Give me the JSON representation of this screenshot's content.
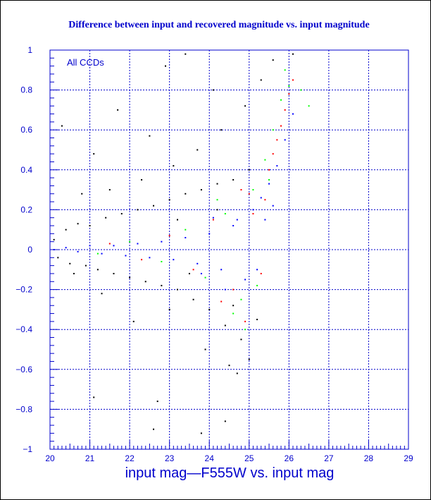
{
  "chart_data": {
    "type": "scatter",
    "title": "Difference between input and recovered magnitude vs. input magnitude",
    "xlabel": "input mag—F555W vs. input mag",
    "ylabel": "",
    "annotation": "All CCDs",
    "xlim": [
      20,
      29
    ],
    "ylim": [
      -1,
      1
    ],
    "x_ticks": [
      "20",
      "21",
      "22",
      "23",
      "24",
      "25",
      "26",
      "27",
      "28",
      "29"
    ],
    "y_ticks": [
      "−1",
      "−0.8",
      "−0.6",
      "−0.4",
      "−0.2",
      "0",
      "0.2",
      "0.4",
      "0.6",
      "0.8",
      "1"
    ],
    "grid": true,
    "axis_color": "#0000cc",
    "grid_color": "#0000cc",
    "series": [
      {
        "color": "#000000",
        "points": [
          [
            20.1,
            0.05
          ],
          [
            20.2,
            -0.04
          ],
          [
            20.4,
            0.1
          ],
          [
            20.5,
            -0.07
          ],
          [
            20.7,
            0.13
          ],
          [
            20.9,
            -0.08
          ],
          [
            21.0,
            0.12
          ],
          [
            21.2,
            -0.1
          ],
          [
            21.4,
            0.16
          ],
          [
            21.6,
            -0.12
          ],
          [
            21.8,
            0.18
          ],
          [
            22.0,
            -0.14
          ],
          [
            22.2,
            0.2
          ],
          [
            22.4,
            -0.16
          ],
          [
            22.6,
            0.22
          ],
          [
            22.8,
            -0.18
          ],
          [
            23.0,
            0.25
          ],
          [
            23.2,
            -0.2
          ],
          [
            23.4,
            0.28
          ],
          [
            23.6,
            -0.25
          ],
          [
            23.8,
            0.3
          ],
          [
            24.0,
            -0.3
          ],
          [
            24.2,
            0.33
          ],
          [
            24.4,
            -0.38
          ],
          [
            24.6,
            0.35
          ],
          [
            24.8,
            -0.45
          ],
          [
            20.8,
            0.28
          ],
          [
            21.5,
            0.3
          ],
          [
            22.3,
            0.35
          ],
          [
            23.1,
            0.42
          ],
          [
            23.7,
            0.5
          ],
          [
            24.3,
            0.6
          ],
          [
            24.9,
            0.72
          ],
          [
            22.9,
            0.92
          ],
          [
            23.4,
            0.98
          ],
          [
            24.1,
            0.8
          ],
          [
            21.7,
            0.7
          ],
          [
            20.3,
            0.62
          ],
          [
            21.1,
            0.48
          ],
          [
            22.5,
            0.57
          ],
          [
            23.0,
            -0.3
          ],
          [
            23.9,
            -0.5
          ],
          [
            24.5,
            -0.58
          ],
          [
            24.7,
            -0.62
          ],
          [
            25.0,
            -0.55
          ],
          [
            22.1,
            -0.36
          ],
          [
            21.3,
            -0.22
          ],
          [
            20.6,
            -0.12
          ],
          [
            24.4,
            -0.86
          ],
          [
            23.8,
            -0.92
          ],
          [
            22.6,
            -0.9
          ],
          [
            25.3,
            0.85
          ],
          [
            25.6,
            0.95
          ],
          [
            26.1,
            0.98
          ],
          [
            22.7,
            -0.76
          ],
          [
            21.1,
            -0.74
          ],
          [
            23.2,
            0.15
          ],
          [
            23.5,
            -0.12
          ],
          [
            24.2,
            0.2
          ],
          [
            24.6,
            -0.28
          ],
          [
            25.0,
            0.4
          ],
          [
            25.2,
            -0.35
          ]
        ]
      },
      {
        "color": "#ff0000",
        "points": [
          [
            21.5,
            0.03
          ],
          [
            22.3,
            -0.05
          ],
          [
            23.0,
            0.07
          ],
          [
            23.6,
            -0.1
          ],
          [
            24.1,
            0.15
          ],
          [
            24.6,
            -0.2
          ],
          [
            25.0,
            0.28
          ],
          [
            25.3,
            -0.12
          ],
          [
            25.5,
            0.4
          ],
          [
            25.7,
            0.55
          ],
          [
            25.9,
            0.7
          ],
          [
            26.0,
            0.78
          ],
          [
            26.1,
            0.85
          ],
          [
            25.4,
            0.25
          ],
          [
            24.8,
            0.3
          ],
          [
            24.3,
            -0.26
          ],
          [
            25.8,
            0.62
          ],
          [
            25.6,
            0.48
          ],
          [
            24.9,
            -0.36
          ],
          [
            25.1,
            0.18
          ]
        ]
      },
      {
        "color": "#00ff00",
        "points": [
          [
            21.2,
            -0.02
          ],
          [
            22.0,
            0.04
          ],
          [
            22.8,
            -0.06
          ],
          [
            23.4,
            0.1
          ],
          [
            23.9,
            -0.14
          ],
          [
            24.4,
            0.18
          ],
          [
            24.8,
            -0.25
          ],
          [
            25.1,
            0.3
          ],
          [
            25.4,
            0.45
          ],
          [
            25.6,
            0.6
          ],
          [
            25.8,
            0.75
          ],
          [
            26.0,
            0.82
          ],
          [
            24.9,
            -0.4
          ],
          [
            24.2,
            0.25
          ],
          [
            25.5,
            0.35
          ],
          [
            25.9,
            0.9
          ],
          [
            26.3,
            0.8
          ],
          [
            26.5,
            0.72
          ],
          [
            24.6,
            -0.32
          ],
          [
            25.2,
            -0.18
          ]
        ]
      },
      {
        "color": "#0000ff",
        "points": [
          [
            20.1,
            0.0
          ],
          [
            20.4,
            0.01
          ],
          [
            20.7,
            -0.01
          ],
          [
            21.0,
            0.02
          ],
          [
            21.3,
            -0.02
          ],
          [
            21.6,
            0.02
          ],
          [
            21.9,
            -0.03
          ],
          [
            22.2,
            0.03
          ],
          [
            22.5,
            -0.04
          ],
          [
            22.8,
            0.04
          ],
          [
            23.1,
            -0.05
          ],
          [
            23.4,
            0.06
          ],
          [
            23.7,
            -0.07
          ],
          [
            24.0,
            0.08
          ],
          [
            24.3,
            -0.1
          ],
          [
            24.6,
            0.12
          ],
          [
            24.9,
            -0.15
          ],
          [
            25.1,
            0.2
          ],
          [
            25.3,
            0.26
          ],
          [
            25.5,
            0.33
          ],
          [
            25.7,
            0.42
          ],
          [
            25.9,
            0.55
          ],
          [
            26.1,
            0.68
          ],
          [
            25.2,
            -0.1
          ],
          [
            24.7,
            0.15
          ],
          [
            24.4,
            -0.2
          ],
          [
            24.1,
            0.16
          ],
          [
            23.8,
            -0.12
          ],
          [
            25.4,
            0.15
          ],
          [
            25.6,
            0.22
          ]
        ]
      }
    ]
  }
}
